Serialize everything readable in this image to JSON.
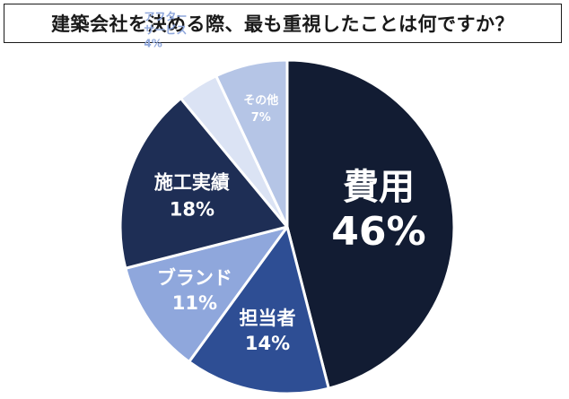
{
  "title": "建築会社を決める際、最も重視したことは何ですか？",
  "chart_data": {
    "type": "pie",
    "title": "建築会社を決める際、最も重視したことは何ですか？",
    "start": "12 o'clock",
    "direction": "clockwise",
    "slices": [
      {
        "label": "費用",
        "value": 46,
        "value_label": "46%",
        "color": "#121c33",
        "text_color": "#ffffff"
      },
      {
        "label": "担当者",
        "value": 14,
        "value_label": "14%",
        "color": "#2e4e94",
        "text_color": "#ffffff"
      },
      {
        "label": "ブランド",
        "value": 11,
        "value_label": "11%",
        "color": "#8fa7dc",
        "text_color": "#ffffff"
      },
      {
        "label": "施工実績",
        "value": 18,
        "value_label": "18%",
        "color": "#1e2e55",
        "text_color": "#ffffff"
      },
      {
        "label": "アフターサービス",
        "label_lines": [
          "アフター",
          "サービス"
        ],
        "value": 4,
        "value_label": "4%",
        "color": "#dbe3f4",
        "text_color": "#8fa7dc"
      },
      {
        "label": "その他",
        "value": 7,
        "value_label": "7%",
        "color": "#b5c5e6",
        "text_color": "#ffffff"
      }
    ]
  }
}
